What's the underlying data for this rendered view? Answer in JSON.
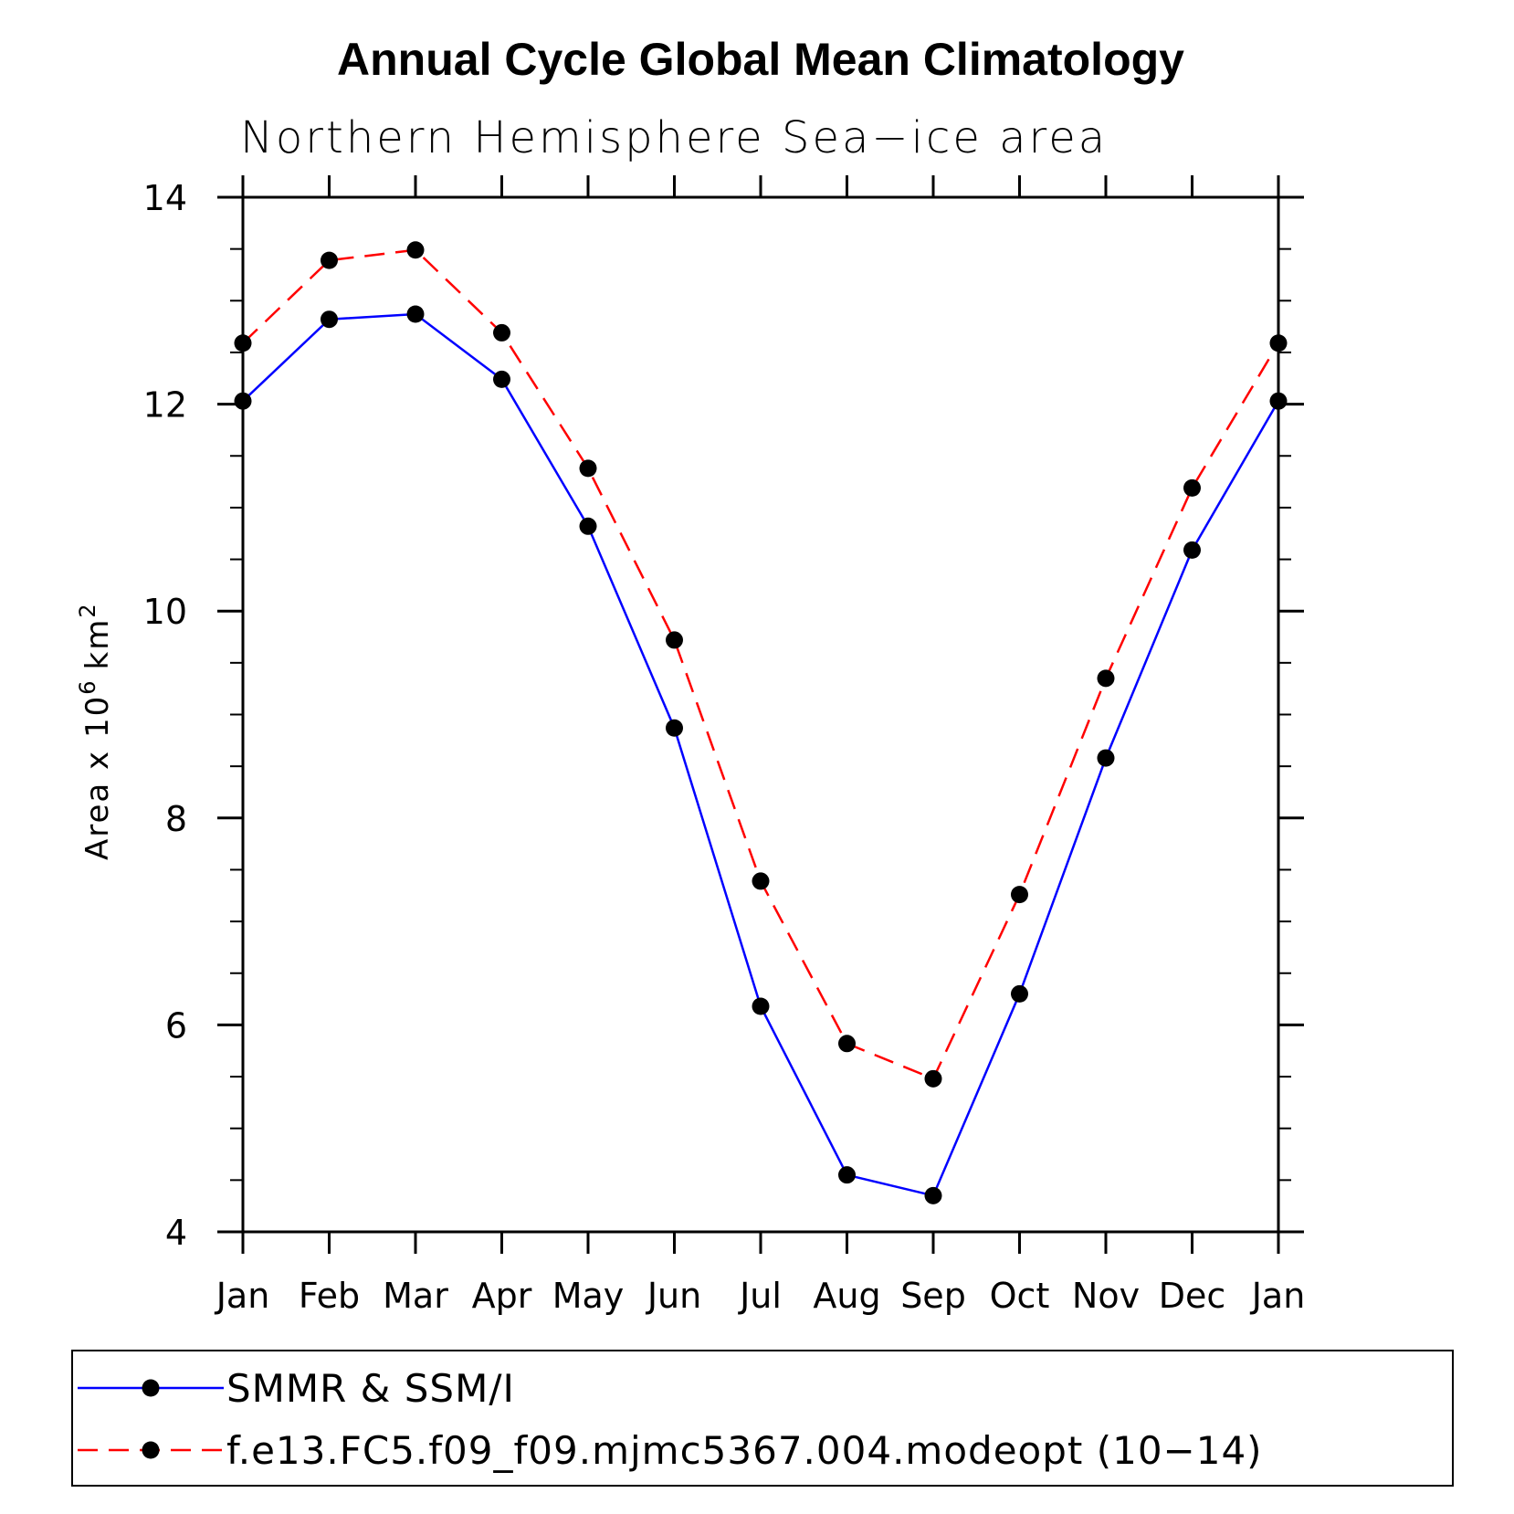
{
  "chart_data": {
    "type": "line",
    "title": "Annual Cycle Global Mean Climatology",
    "subtitle": "Northern Hemisphere Sea−ice area",
    "ylabel": "Area x 10",
    "ylabel_superscript": "6",
    "ylabel_unit": "km",
    "ylabel_unit_superscript": "2",
    "categories": [
      "Jan",
      "Feb",
      "Mar",
      "Apr",
      "May",
      "Jun",
      "Jul",
      "Aug",
      "Sep",
      "Oct",
      "Nov",
      "Dec",
      "Jan"
    ],
    "ylim": [
      4,
      14
    ],
    "yticks": [
      "4",
      "6",
      "8",
      "10",
      "12",
      "14"
    ],
    "grid": false,
    "legend_position": "bottom",
    "series": [
      {
        "name": "SMMR & SSM/I",
        "color": "#0000ff",
        "line_style": "solid",
        "marker": "filled-circle",
        "values": [
          12.03,
          12.82,
          12.87,
          12.24,
          10.82,
          8.87,
          6.18,
          4.55,
          4.35,
          6.3,
          8.58,
          10.59,
          12.03
        ]
      },
      {
        "name": "f.e13.FC5.f09_f09.mjmc5367.004.modeopt (10−14)",
        "color": "#ff0000",
        "line_style": "dashed",
        "marker": "filled-circle",
        "values": [
          12.59,
          13.39,
          13.49,
          12.69,
          11.38,
          9.72,
          7.39,
          5.82,
          5.48,
          7.26,
          9.35,
          11.19,
          12.59
        ]
      }
    ]
  }
}
